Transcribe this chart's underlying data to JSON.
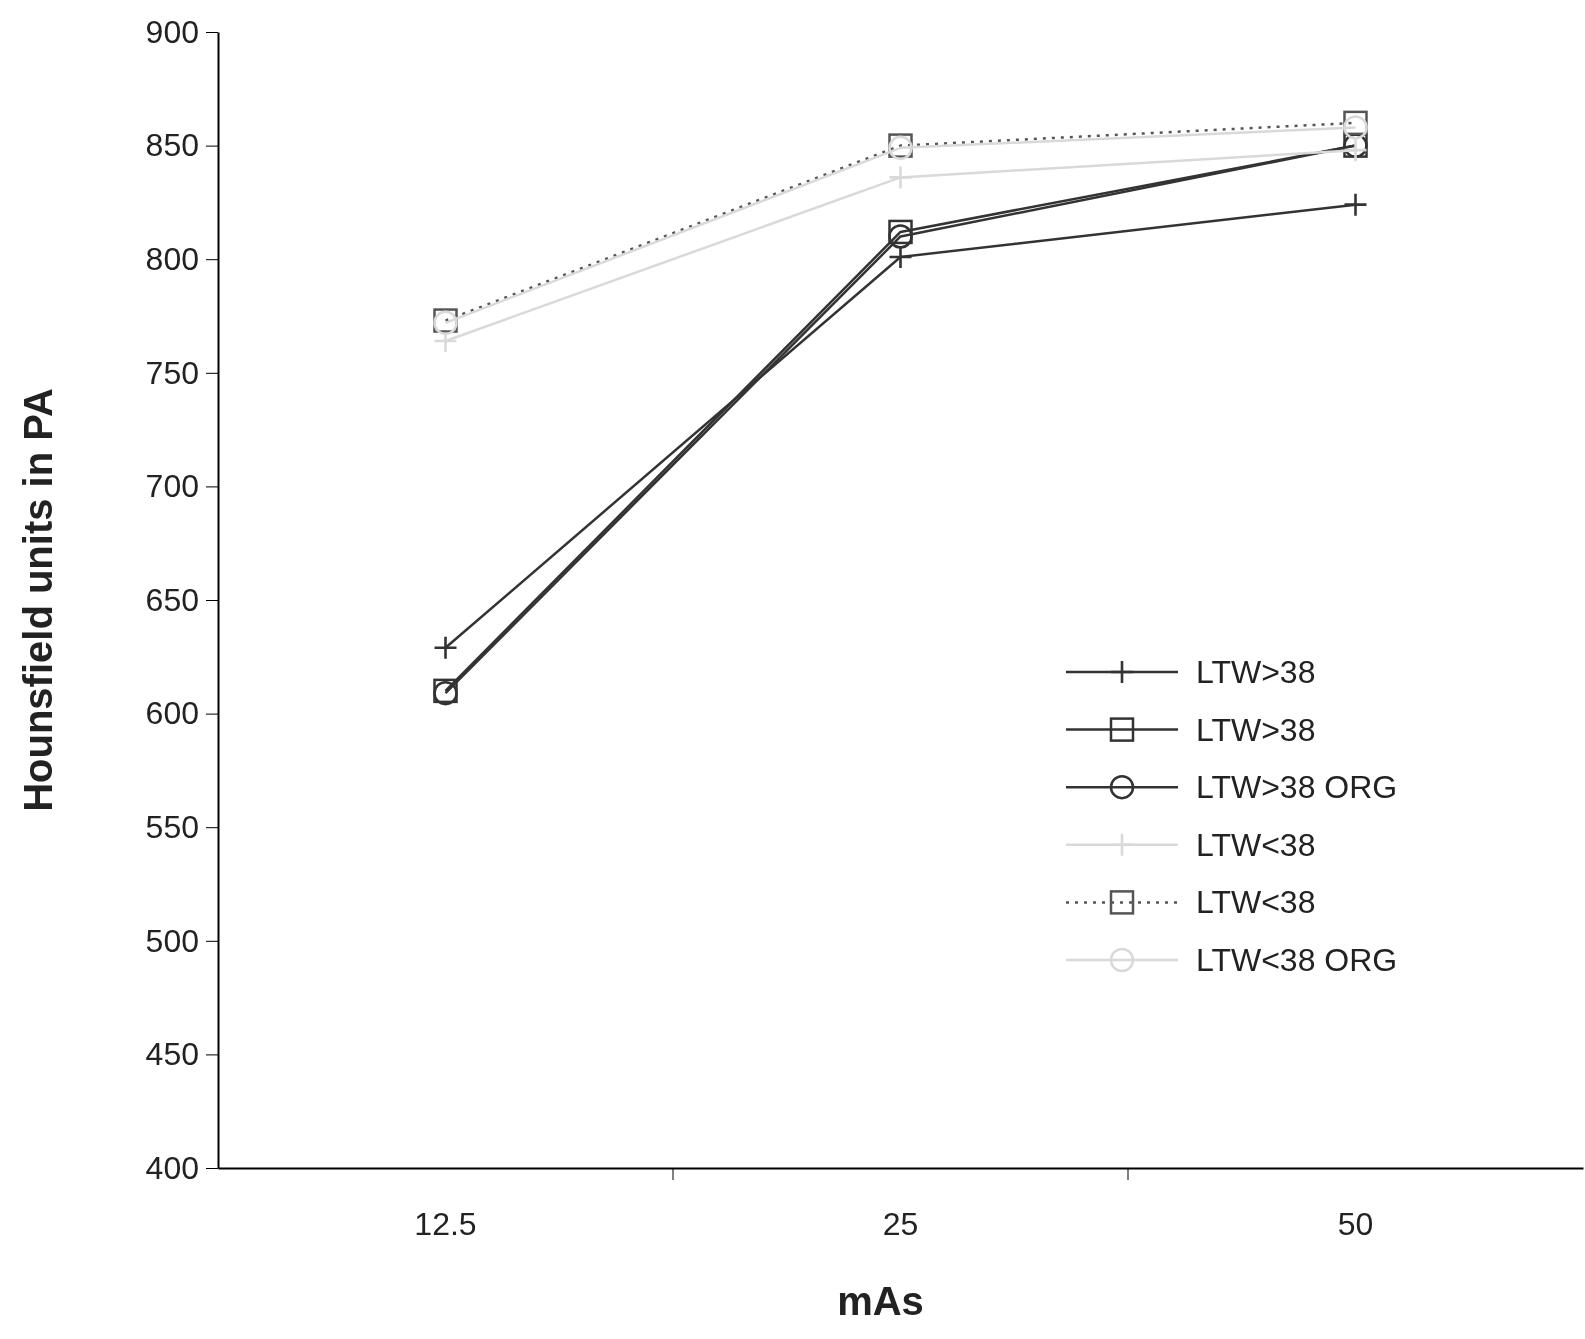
{
  "chart_data": {
    "type": "line",
    "xlabel": "mAs",
    "ylabel": "Hounsfield units in PA",
    "categories": [
      "12.5",
      "25",
      "50"
    ],
    "ylim": [
      400,
      900
    ],
    "yticks": [
      400,
      450,
      500,
      550,
      600,
      650,
      700,
      750,
      800,
      850,
      900
    ],
    "grid": false,
    "legend": "right",
    "series": [
      {
        "name": "LTW>38",
        "color": "#333333",
        "marker": "cross",
        "line_style": "solid",
        "values": [
          629,
          801,
          824
        ]
      },
      {
        "name": "LTW>38",
        "color": "#333333",
        "marker": "square",
        "line_style": "solid",
        "values": [
          610,
          812,
          850
        ]
      },
      {
        "name": "LTW>38 ORG",
        "color": "#333333",
        "marker": "circle",
        "line_style": "solid",
        "values": [
          609,
          810,
          850
        ]
      },
      {
        "name": "LTW<38",
        "color": "#d9d9d9",
        "marker": "cross",
        "line_style": "solid",
        "values": [
          764,
          836,
          848
        ]
      },
      {
        "name": "LTW<38",
        "color": "#555555",
        "marker": "square",
        "line_style": "dotted",
        "values": [
          773,
          850,
          860
        ]
      },
      {
        "name": "LTW<38 ORG",
        "color": "#d9d9d9",
        "marker": "circle",
        "line_style": "solid",
        "values": [
          772,
          849,
          858
        ]
      }
    ]
  }
}
